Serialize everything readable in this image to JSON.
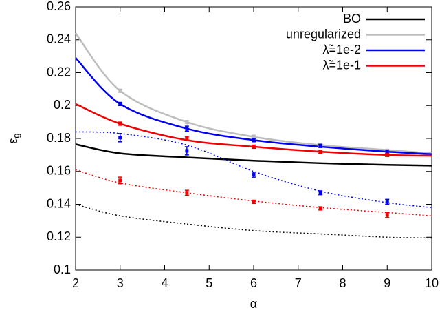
{
  "chart_data": {
    "type": "line",
    "xlabel": "α",
    "ylabel": {
      "text": "ε",
      "sub": "g"
    },
    "x": [
      2,
      3,
      4.5,
      6,
      7.5,
      9,
      10
    ],
    "xlim": [
      2,
      10
    ],
    "xticks": [
      2,
      3,
      4,
      5,
      6,
      7,
      8,
      9,
      10
    ],
    "ylim": [
      0.1,
      0.26
    ],
    "yticks": [
      0.1,
      0.12,
      0.14,
      0.16,
      0.18,
      0.2,
      0.22,
      0.24,
      0.26
    ],
    "legend": "top-right",
    "series": [
      {
        "name": "BO",
        "color": "#000000",
        "values": [
          0.1765,
          0.171,
          0.1685,
          0.1665,
          0.165,
          0.164,
          0.1635
        ]
      },
      {
        "name": "unregularized",
        "color": "#bdbdbd",
        "values": [
          0.244,
          0.209,
          0.19,
          0.181,
          0.176,
          0.173,
          0.171
        ]
      },
      {
        "name": "λ̃=1e-2",
        "color": "#0000ee",
        "values": [
          0.229,
          0.201,
          0.186,
          0.179,
          0.175,
          0.172,
          0.1705
        ]
      },
      {
        "name": "λ̃=1e-1",
        "color": "#ee0000",
        "values": [
          0.201,
          0.189,
          0.179,
          0.175,
          0.172,
          0.17,
          0.1695
        ]
      },
      {
        "color": "#0000ee",
        "dash": true,
        "values": [
          0.184,
          0.183,
          0.176,
          0.16,
          0.148,
          0.141,
          0.138
        ]
      },
      {
        "color": "#ee0000",
        "dash": true,
        "values": [
          0.161,
          0.153,
          0.147,
          0.142,
          0.138,
          0.135,
          0.133
        ]
      },
      {
        "color": "#000000",
        "dash": true,
        "values": [
          0.14,
          0.133,
          0.128,
          0.124,
          0.122,
          0.12,
          0.1195
        ]
      }
    ],
    "points": [
      {
        "color": "#bdbdbd",
        "x": [
          3,
          4.5,
          6,
          7.5,
          9
        ],
        "values": [
          0.209,
          0.19,
          0.181,
          0.176,
          0.1725
        ],
        "errors": [
          0.001,
          0.001,
          0.001,
          0.001,
          0.001
        ]
      },
      {
        "color": "#0000ee",
        "x": [
          3,
          4.5,
          6,
          7.5,
          9
        ],
        "values": [
          0.201,
          0.186,
          0.179,
          0.1755,
          0.172
        ],
        "errors": [
          0.001,
          0.0015,
          0.001,
          0.001,
          0.001
        ]
      },
      {
        "color": "#ee0000",
        "x": [
          3,
          4.5,
          6,
          7.5,
          9
        ],
        "values": [
          0.189,
          0.18,
          0.175,
          0.172,
          0.17
        ],
        "errors": [
          0.001,
          0.001,
          0.001,
          0.001,
          0.001
        ]
      },
      {
        "color": "#0000ee",
        "x": [
          3,
          4.5,
          6,
          7.5,
          9
        ],
        "values": [
          0.1805,
          0.1725,
          0.158,
          0.147,
          0.1415
        ],
        "errors": [
          0.0025,
          0.0025,
          0.0015,
          0.0012,
          0.0015
        ]
      },
      {
        "color": "#ee0000",
        "x": [
          3,
          4.5,
          6,
          7.5,
          9
        ],
        "values": [
          0.1545,
          0.147,
          0.1415,
          0.1375,
          0.1335
        ],
        "errors": [
          0.002,
          0.0015,
          0.001,
          0.001,
          0.0015
        ]
      }
    ]
  }
}
